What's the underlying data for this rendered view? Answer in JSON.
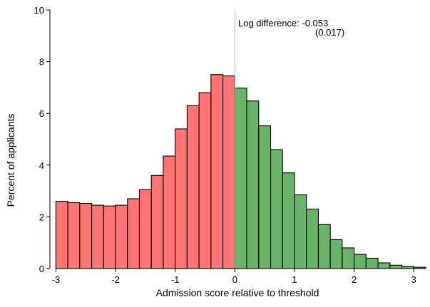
{
  "chart_data": {
    "type": "bar",
    "xlabel": "Admission score relative to threshold",
    "ylabel": "Percent of applicants",
    "ylim": [
      0,
      10
    ],
    "xlim": [
      -3.1,
      3.2
    ],
    "bin_width": 0.2,
    "y_ticks": [
      0,
      2,
      4,
      6,
      8,
      10
    ],
    "x_ticks": [
      -3,
      -2,
      -1,
      0,
      1,
      2,
      3
    ],
    "x_tick_labels": [
      "-3",
      "-2",
      "-1",
      "0",
      "1",
      "2",
      "3"
    ],
    "y_tick_labels": [
      "0",
      "2",
      "4",
      "6",
      "8",
      "10"
    ],
    "threshold": 0,
    "grid": false,
    "colors": {
      "below": "#ff7373",
      "above": "#6ab46a",
      "edge": "#000000",
      "threshold_line": "#bdbdbd"
    },
    "annotation": {
      "line1": "Log difference: -0.053",
      "line2": "(0.017)"
    },
    "series": [
      {
        "side": "below",
        "bins_left_edge": [
          -3.0,
          -2.8,
          -2.6,
          -2.4,
          -2.2,
          -2.0,
          -1.8,
          -1.6,
          -1.4,
          -1.2,
          -1.0,
          -0.8,
          -0.6,
          -0.4,
          -0.2
        ],
        "values": [
          2.6,
          2.55,
          2.52,
          2.45,
          2.42,
          2.45,
          2.7,
          3.05,
          3.6,
          4.35,
          5.4,
          6.3,
          6.8,
          7.5,
          7.45
        ]
      },
      {
        "side": "above",
        "bins_left_edge": [
          0.0,
          0.2,
          0.4,
          0.6,
          0.8,
          1.0,
          1.2,
          1.4,
          1.6,
          1.8,
          2.0,
          2.2,
          2.4,
          2.6,
          2.8,
          3.0
        ],
        "values": [
          6.98,
          6.48,
          5.52,
          4.6,
          3.7,
          2.85,
          2.3,
          1.7,
          1.12,
          0.8,
          0.55,
          0.4,
          0.22,
          0.13,
          0.08,
          0.05
        ]
      }
    ]
  }
}
